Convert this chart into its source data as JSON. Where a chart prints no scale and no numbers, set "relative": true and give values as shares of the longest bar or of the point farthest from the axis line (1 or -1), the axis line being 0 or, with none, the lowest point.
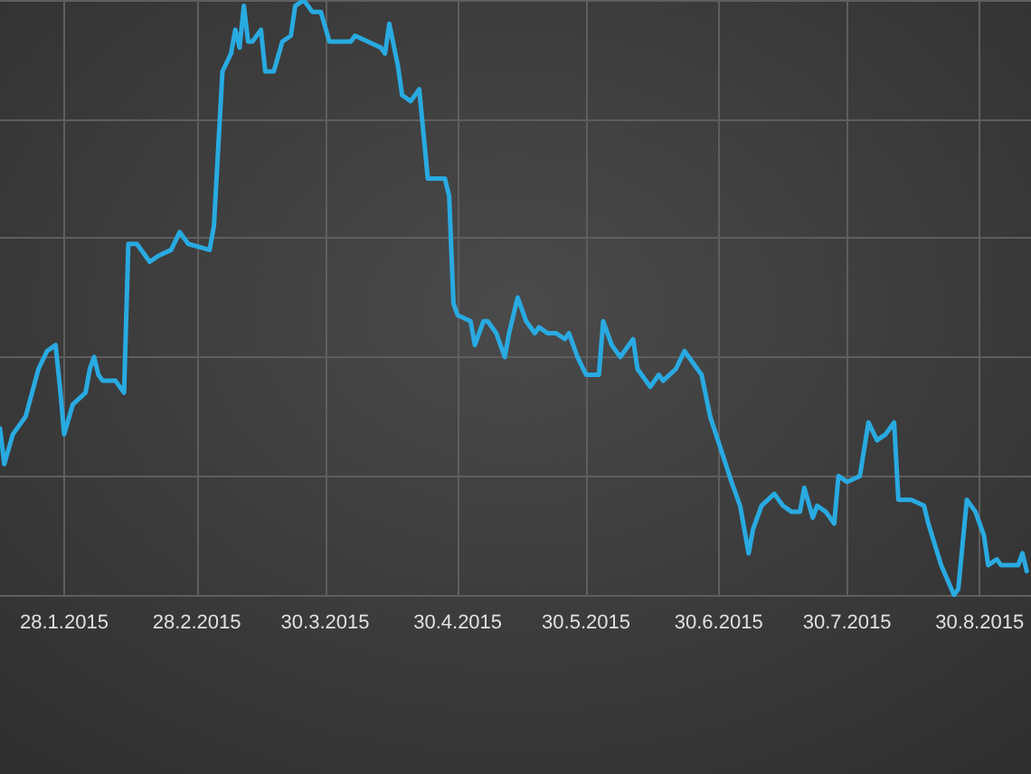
{
  "chart_data": {
    "type": "line",
    "relative": true,
    "color": "#29aae1",
    "grid": true,
    "marker": "none",
    "line_style": "solid",
    "xlim": [
      "2015-01-13",
      "2015-09-11"
    ],
    "xticks": [
      {
        "value": "2015-01-28",
        "label": "28.1.2015"
      },
      {
        "value": "2015-02-28",
        "label": "28.2.2015"
      },
      {
        "value": "2015-03-30",
        "label": "30.3.2015"
      },
      {
        "value": "2015-04-30",
        "label": "30.4.2015"
      },
      {
        "value": "2015-05-30",
        "label": "30.5.2015"
      },
      {
        "value": "2015-06-30",
        "label": "30.6.2015"
      },
      {
        "value": "2015-07-30",
        "label": "30.7.2015"
      },
      {
        "value": "2015-08-30",
        "label": "30.8.2015"
      }
    ],
    "x": [
      "2015-01-13",
      "2015-01-14",
      "2015-01-16",
      "2015-01-19",
      "2015-01-22",
      "2015-01-24",
      "2015-01-26",
      "2015-01-27",
      "2015-01-28",
      "2015-01-30",
      "2015-02-02",
      "2015-02-03",
      "2015-02-04",
      "2015-02-05",
      "2015-02-06",
      "2015-02-09",
      "2015-02-11",
      "2015-02-12",
      "2015-02-14",
      "2015-02-17",
      "2015-02-19",
      "2015-02-22",
      "2015-02-24",
      "2015-02-26",
      "2015-03-03",
      "2015-03-04",
      "2015-03-06",
      "2015-03-08",
      "2015-03-09",
      "2015-03-10",
      "2015-03-11",
      "2015-03-12",
      "2015-03-13",
      "2015-03-15",
      "2015-03-16",
      "2015-03-18",
      "2015-03-20",
      "2015-03-22",
      "2015-03-23",
      "2015-03-25",
      "2015-03-27",
      "2015-03-29",
      "2015-03-31",
      "2015-04-05",
      "2015-04-06",
      "2015-04-09",
      "2015-04-12",
      "2015-04-13",
      "2015-04-14",
      "2015-04-16",
      "2015-04-17",
      "2015-04-19",
      "2015-04-21",
      "2015-04-23",
      "2015-04-27",
      "2015-04-28",
      "2015-04-29",
      "2015-04-30",
      "2015-05-03",
      "2015-05-04",
      "2015-05-06",
      "2015-05-07",
      "2015-05-09",
      "2015-05-11",
      "2015-05-12",
      "2015-05-14",
      "2015-05-16",
      "2015-05-18",
      "2015-05-19",
      "2015-05-21",
      "2015-05-23",
      "2015-05-25",
      "2015-05-26",
      "2015-05-28",
      "2015-05-30",
      "2015-06-02",
      "2015-06-03",
      "2015-06-05",
      "2015-06-07",
      "2015-06-10",
      "2015-06-11",
      "2015-06-14",
      "2015-06-16",
      "2015-06-17",
      "2015-06-20",
      "2015-06-22",
      "2015-06-26",
      "2015-06-28",
      "2015-07-03",
      "2015-07-05",
      "2015-07-07",
      "2015-07-08",
      "2015-07-10",
      "2015-07-13",
      "2015-07-15",
      "2015-07-17",
      "2015-07-19",
      "2015-07-20",
      "2015-07-22",
      "2015-07-23",
      "2015-07-25",
      "2015-07-27",
      "2015-07-28",
      "2015-07-30",
      "2015-08-02",
      "2015-08-04",
      "2015-08-06",
      "2015-08-08",
      "2015-08-10",
      "2015-08-11",
      "2015-08-14",
      "2015-08-17",
      "2015-08-18",
      "2015-08-21",
      "2015-08-24",
      "2015-08-25",
      "2015-08-27",
      "2015-08-29",
      "2015-08-31",
      "2015-09-01",
      "2015-09-03",
      "2015-09-04",
      "2015-09-08",
      "2015-09-09",
      "2015-09-10"
    ],
    "values": [
      0.28,
      0.22,
      0.27,
      0.3,
      0.38,
      0.41,
      0.42,
      0.35,
      0.27,
      0.32,
      0.34,
      0.38,
      0.4,
      0.37,
      0.36,
      0.36,
      0.34,
      0.59,
      0.59,
      0.56,
      0.57,
      0.58,
      0.61,
      0.59,
      0.58,
      0.62,
      0.88,
      0.91,
      0.95,
      0.92,
      0.99,
      0.93,
      0.93,
      0.95,
      0.88,
      0.88,
      0.93,
      0.94,
      0.99,
      1,
      0.98,
      0.98,
      0.93,
      0.93,
      0.94,
      0.93,
      0.92,
      0.91,
      0.96,
      0.89,
      0.84,
      0.83,
      0.85,
      0.7,
      0.7,
      0.67,
      0.49,
      0.47,
      0.46,
      0.42,
      0.46,
      0.46,
      0.44,
      0.4,
      0.44,
      0.5,
      0.46,
      0.44,
      0.45,
      0.44,
      0.44,
      0.43,
      0.44,
      0.4,
      0.37,
      0.37,
      0.46,
      0.42,
      0.4,
      0.43,
      0.38,
      0.35,
      0.37,
      0.36,
      0.38,
      0.41,
      0.37,
      0.3,
      0.19,
      0.15,
      0.07,
      0.11,
      0.15,
      0.17,
      0.15,
      0.14,
      0.14,
      0.18,
      0.13,
      0.15,
      0.14,
      0.12,
      0.2,
      0.19,
      0.2,
      0.29,
      0.26,
      0.27,
      0.29,
      0.16,
      0.16,
      0.15,
      0.12,
      0.05,
      0,
      0.01,
      0.16,
      0.14,
      0.1,
      0.05,
      0.06,
      0.05,
      0.05,
      0.07,
      0.04
    ]
  }
}
